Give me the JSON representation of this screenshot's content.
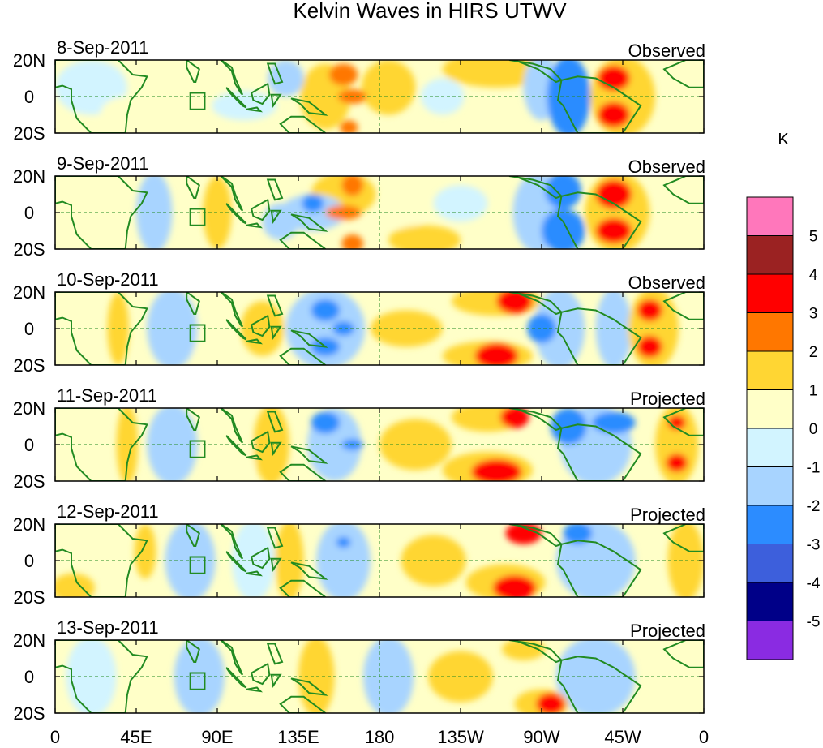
{
  "chart_data": {
    "type": "heatmap",
    "title": "Kelvin Waves in HIRS UTWV",
    "colorbar": {
      "unit": "K",
      "levels": [
        "5",
        "4",
        "3",
        "2",
        "1",
        "0",
        "-1",
        "-2",
        "-3",
        "-4",
        "-5"
      ],
      "colors": [
        "#ff77bb",
        "#9b2222",
        "#ff0000",
        "#ff7700",
        "#ffd633",
        "#ffffc8",
        "#d2f4ff",
        "#a8d4ff",
        "#2c8cff",
        "#3d5fdc",
        "#000088",
        "#8a2be2"
      ]
    },
    "x_ticks": [
      "0",
      "45E",
      "90E",
      "135E",
      "180",
      "135W",
      "90W",
      "45W",
      "0"
    ],
    "y_ticks": [
      "20N",
      "0",
      "20S"
    ],
    "panels": [
      {
        "date": "8-Sep-2011",
        "label": "Observed",
        "blobs": [
          {
            "lon": 160,
            "lat": 12,
            "rx": 8,
            "ry": 6,
            "v": 2.2
          },
          {
            "lon": 165,
            "lat": 0,
            "rx": 8,
            "ry": 4,
            "v": 2.2
          },
          {
            "lon": 163,
            "lat": -17,
            "rx": 5,
            "ry": 4,
            "v": 2.2
          },
          {
            "lon": 150,
            "lat": 0,
            "rx": 14,
            "ry": 18,
            "v": 1.3
          },
          {
            "lon": 185,
            "lat": 5,
            "rx": 15,
            "ry": 15,
            "v": 1.3
          },
          {
            "lon": 245,
            "lat": 15,
            "rx": 30,
            "ry": 10,
            "v": 1.3
          },
          {
            "lon": 310,
            "lat": 10,
            "rx": 9,
            "ry": 7,
            "v": 3.4
          },
          {
            "lon": 310,
            "lat": -10,
            "rx": 9,
            "ry": 7,
            "v": 3.4
          },
          {
            "lon": 315,
            "lat": 0,
            "rx": 18,
            "ry": 22,
            "v": 1.4
          },
          {
            "lon": 285,
            "lat": 0,
            "rx": 12,
            "ry": 22,
            "v": -2.4
          },
          {
            "lon": 270,
            "lat": 5,
            "rx": 10,
            "ry": 18,
            "v": -1.4
          },
          {
            "lon": 128,
            "lat": 10,
            "rx": 10,
            "ry": 10,
            "v": -1.4
          },
          {
            "lon": 105,
            "lat": -5,
            "rx": 18,
            "ry": 8,
            "v": -0.5
          },
          {
            "lon": 215,
            "lat": 0,
            "rx": 12,
            "ry": 10,
            "v": -0.6
          },
          {
            "lon": 40,
            "lat": -10,
            "rx": 15,
            "ry": 10,
            "v": 0.5
          },
          {
            "lon": 20,
            "lat": 5,
            "rx": 20,
            "ry": 15,
            "v": -0.4
          }
        ]
      },
      {
        "date": "9-Sep-2011",
        "label": "Observed",
        "blobs": [
          {
            "lon": 143,
            "lat": 5,
            "rx": 6,
            "ry": 5,
            "v": -2.5
          },
          {
            "lon": 143,
            "lat": 0,
            "rx": 18,
            "ry": 10,
            "v": -1.4
          },
          {
            "lon": 125,
            "lat": -5,
            "rx": 10,
            "ry": 10,
            "v": -1.3
          },
          {
            "lon": 160,
            "lat": 0,
            "rx": 10,
            "ry": 4,
            "v": 2.3
          },
          {
            "lon": 165,
            "lat": 15,
            "rx": 6,
            "ry": 6,
            "v": 2.2
          },
          {
            "lon": 165,
            "lat": -17,
            "rx": 6,
            "ry": 5,
            "v": 2.2
          },
          {
            "lon": 160,
            "lat": 10,
            "rx": 18,
            "ry": 12,
            "v": 1.3
          },
          {
            "lon": 205,
            "lat": -15,
            "rx": 20,
            "ry": 8,
            "v": 1.3
          },
          {
            "lon": 90,
            "lat": 0,
            "rx": 8,
            "ry": 20,
            "v": 1.3
          },
          {
            "lon": 310,
            "lat": 10,
            "rx": 10,
            "ry": 8,
            "v": 3.4
          },
          {
            "lon": 310,
            "lat": -10,
            "rx": 10,
            "ry": 7,
            "v": 3.4
          },
          {
            "lon": 312,
            "lat": 0,
            "rx": 18,
            "ry": 22,
            "v": 1.4
          },
          {
            "lon": 282,
            "lat": -10,
            "rx": 12,
            "ry": 12,
            "v": -2.4
          },
          {
            "lon": 282,
            "lat": 12,
            "rx": 10,
            "ry": 10,
            "v": -2.3
          },
          {
            "lon": 268,
            "lat": 0,
            "rx": 14,
            "ry": 22,
            "v": -1.3
          },
          {
            "lon": 55,
            "lat": 0,
            "rx": 10,
            "ry": 22,
            "v": -1.3
          },
          {
            "lon": 225,
            "lat": 5,
            "rx": 15,
            "ry": 10,
            "v": -0.5
          },
          {
            "lon": 195,
            "lat": 5,
            "rx": 10,
            "ry": 15,
            "v": 0.5
          }
        ]
      },
      {
        "date": "10-Sep-2011",
        "label": "Observed",
        "blobs": [
          {
            "lon": 160,
            "lat": 0,
            "rx": 6,
            "ry": 4,
            "v": -2.4
          },
          {
            "lon": 150,
            "lat": 10,
            "rx": 8,
            "ry": 6,
            "v": -2.4
          },
          {
            "lon": 150,
            "lat": -10,
            "rx": 8,
            "ry": 5,
            "v": -2.4
          },
          {
            "lon": 150,
            "lat": 0,
            "rx": 22,
            "ry": 22,
            "v": -1.4
          },
          {
            "lon": 115,
            "lat": 0,
            "rx": 12,
            "ry": 15,
            "v": 1.3
          },
          {
            "lon": 85,
            "lat": -5,
            "rx": 14,
            "ry": 12,
            "v": 0.5
          },
          {
            "lon": 65,
            "lat": 0,
            "rx": 14,
            "ry": 22,
            "v": -1.3
          },
          {
            "lon": 35,
            "lat": 0,
            "rx": 6,
            "ry": 20,
            "v": 1.3
          },
          {
            "lon": 195,
            "lat": 0,
            "rx": 20,
            "ry": 10,
            "v": 1.3
          },
          {
            "lon": 255,
            "lat": 15,
            "rx": 10,
            "ry": 7,
            "v": 3.4
          },
          {
            "lon": 245,
            "lat": -15,
            "rx": 12,
            "ry": 7,
            "v": 3.4
          },
          {
            "lon": 245,
            "lat": 15,
            "rx": 25,
            "ry": 8,
            "v": 1.3
          },
          {
            "lon": 240,
            "lat": -15,
            "rx": 25,
            "ry": 8,
            "v": 1.3
          },
          {
            "lon": 280,
            "lat": 0,
            "rx": 14,
            "ry": 22,
            "v": -1.4
          },
          {
            "lon": 270,
            "lat": 0,
            "rx": 8,
            "ry": 8,
            "v": -2.3
          },
          {
            "lon": 330,
            "lat": 10,
            "rx": 7,
            "ry": 6,
            "v": 3.4
          },
          {
            "lon": 330,
            "lat": -10,
            "rx": 7,
            "ry": 6,
            "v": 3.4
          },
          {
            "lon": 332,
            "lat": 0,
            "rx": 14,
            "ry": 22,
            "v": 1.4
          },
          {
            "lon": 310,
            "lat": 0,
            "rx": 10,
            "ry": 22,
            "v": -1.3
          }
        ]
      },
      {
        "date": "11-Sep-2011",
        "label": "Projected",
        "blobs": [
          {
            "lon": 40,
            "lat": 0,
            "rx": 6,
            "ry": 22,
            "v": 1.4
          },
          {
            "lon": 65,
            "lat": 0,
            "rx": 14,
            "ry": 22,
            "v": -1.3
          },
          {
            "lon": 100,
            "lat": -5,
            "rx": 12,
            "ry": 12,
            "v": 0.5
          },
          {
            "lon": 120,
            "lat": 0,
            "rx": 10,
            "ry": 22,
            "v": 1.3
          },
          {
            "lon": 150,
            "lat": 12,
            "rx": 8,
            "ry": 6,
            "v": -2.4
          },
          {
            "lon": 155,
            "lat": 0,
            "rx": 15,
            "ry": 20,
            "v": -1.4
          },
          {
            "lon": 165,
            "lat": 0,
            "rx": 6,
            "ry": 3,
            "v": -2.2
          },
          {
            "lon": 200,
            "lat": 0,
            "rx": 20,
            "ry": 14,
            "v": 1.2
          },
          {
            "lon": 240,
            "lat": 15,
            "rx": 20,
            "ry": 8,
            "v": 1.3
          },
          {
            "lon": 255,
            "lat": 15,
            "rx": 8,
            "ry": 6,
            "v": 3.4
          },
          {
            "lon": 245,
            "lat": -15,
            "rx": 14,
            "ry": 7,
            "v": 3.4
          },
          {
            "lon": 240,
            "lat": -14,
            "rx": 25,
            "ry": 10,
            "v": 1.3
          },
          {
            "lon": 285,
            "lat": 10,
            "rx": 10,
            "ry": 10,
            "v": -2.3
          },
          {
            "lon": 310,
            "lat": 12,
            "rx": 12,
            "ry": 6,
            "v": -2.3
          },
          {
            "lon": 300,
            "lat": 0,
            "rx": 20,
            "ry": 22,
            "v": -1.3
          },
          {
            "lon": 345,
            "lat": -10,
            "rx": 6,
            "ry": 5,
            "v": 3.4
          },
          {
            "lon": 345,
            "lat": 12,
            "rx": 5,
            "ry": 4,
            "v": 3.4
          },
          {
            "lon": 345,
            "lat": 0,
            "rx": 12,
            "ry": 22,
            "v": 1.4
          }
        ]
      },
      {
        "date": "12-Sep-2011",
        "label": "Projected",
        "blobs": [
          {
            "lon": 10,
            "lat": -15,
            "rx": 12,
            "ry": 8,
            "v": 1.3
          },
          {
            "lon": 50,
            "lat": 5,
            "rx": 6,
            "ry": 15,
            "v": 1.3
          },
          {
            "lon": 75,
            "lat": 0,
            "rx": 14,
            "ry": 22,
            "v": -1.3
          },
          {
            "lon": 110,
            "lat": 0,
            "rx": 12,
            "ry": 22,
            "v": -0.5
          },
          {
            "lon": 130,
            "lat": 0,
            "rx": 8,
            "ry": 22,
            "v": 1.3
          },
          {
            "lon": 160,
            "lat": 10,
            "rx": 4,
            "ry": 3,
            "v": -2.2
          },
          {
            "lon": 160,
            "lat": 0,
            "rx": 15,
            "ry": 22,
            "v": -1.3
          },
          {
            "lon": 210,
            "lat": 0,
            "rx": 18,
            "ry": 14,
            "v": 1.3
          },
          {
            "lon": 260,
            "lat": 15,
            "rx": 10,
            "ry": 6,
            "v": 3.4
          },
          {
            "lon": 255,
            "lat": -15,
            "rx": 12,
            "ry": 7,
            "v": 3.4
          },
          {
            "lon": 250,
            "lat": -12,
            "rx": 22,
            "ry": 10,
            "v": 1.3
          },
          {
            "lon": 300,
            "lat": 0,
            "rx": 22,
            "ry": 22,
            "v": -1.3
          },
          {
            "lon": 290,
            "lat": 15,
            "rx": 8,
            "ry": 6,
            "v": -2.3
          },
          {
            "lon": 350,
            "lat": 0,
            "rx": 10,
            "ry": 22,
            "v": 1.3
          }
        ]
      },
      {
        "date": "13-Sep-2011",
        "label": "Projected",
        "blobs": [
          {
            "lon": 80,
            "lat": 0,
            "rx": 14,
            "ry": 22,
            "v": -1.2
          },
          {
            "lon": 145,
            "lat": 0,
            "rx": 10,
            "ry": 22,
            "v": 1.3
          },
          {
            "lon": 185,
            "lat": 0,
            "rx": 14,
            "ry": 22,
            "v": -1.2
          },
          {
            "lon": 225,
            "lat": 0,
            "rx": 18,
            "ry": 14,
            "v": 1.3
          },
          {
            "lon": 275,
            "lat": -15,
            "rx": 8,
            "ry": 6,
            "v": 3.4
          },
          {
            "lon": 270,
            "lat": -15,
            "rx": 15,
            "ry": 8,
            "v": 1.3
          },
          {
            "lon": 300,
            "lat": 0,
            "rx": 22,
            "ry": 22,
            "v": -1.2
          },
          {
            "lon": 260,
            "lat": 15,
            "rx": 12,
            "ry": 6,
            "v": 1.3
          },
          {
            "lon": 20,
            "lat": 0,
            "rx": 14,
            "ry": 22,
            "v": -0.5
          }
        ]
      }
    ]
  }
}
